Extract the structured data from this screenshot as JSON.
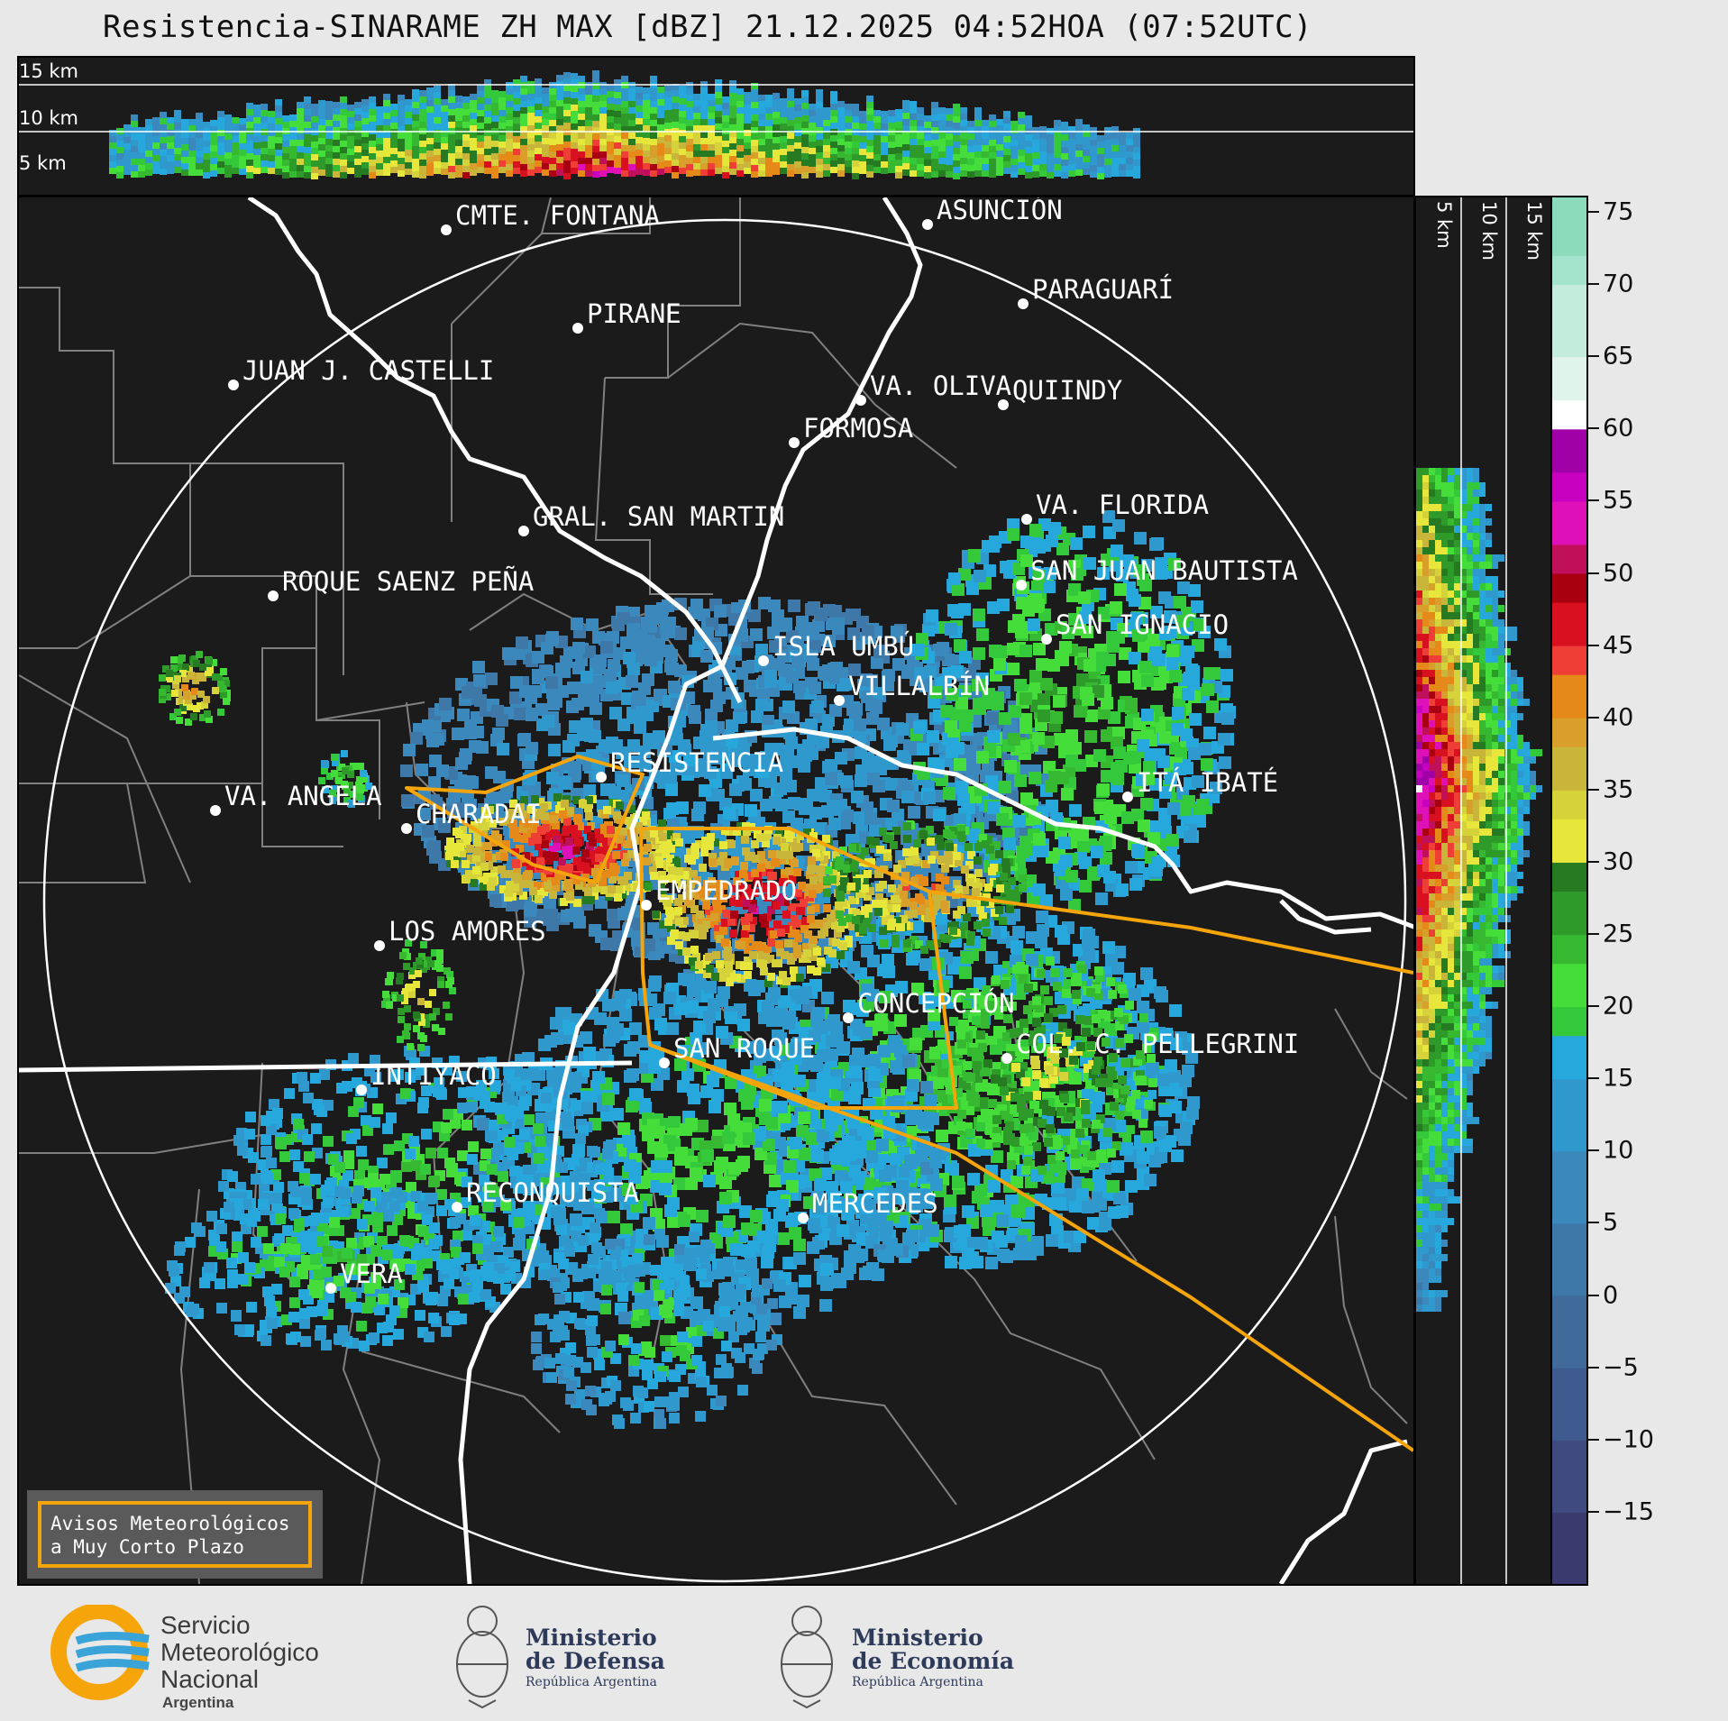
{
  "title": "Resistencia-SINARAME ZH MAX [dBZ] 21.12.2025 04:52HOA (07:52UTC)",
  "top_panel": {
    "height_labels": [
      "15 km",
      "10 km",
      "5 km"
    ]
  },
  "side_panel": {
    "height_labels": [
      "5 km",
      "10 km",
      "15 km"
    ]
  },
  "cities": [
    {
      "name": "CMTE. FONTANA"
    },
    {
      "name": "ASUNCIÓN"
    },
    {
      "name": "PIRANE"
    },
    {
      "name": "PARAGUARÍ"
    },
    {
      "name": "JUAN J. CASTELLI"
    },
    {
      "name": "VA. OLIVA"
    },
    {
      "name": "QUIINDY"
    },
    {
      "name": "FORMOSA"
    },
    {
      "name": "VA. FLORIDA"
    },
    {
      "name": "GRAL. SAN MARTIN"
    },
    {
      "name": "SAN JUAN BAUTISTA"
    },
    {
      "name": "ROQUE SAENZ PEÑA"
    },
    {
      "name": "SAN IGNACIO"
    },
    {
      "name": "ISLA UMBÚ"
    },
    {
      "name": "VILLALBÍN"
    },
    {
      "name": "RESISTENCIA"
    },
    {
      "name": "VA. ANGELA"
    },
    {
      "name": "ITÁ IBATÉ"
    },
    {
      "name": "CHARADAI"
    },
    {
      "name": "EMPEDRADO"
    },
    {
      "name": "LOS AMORES"
    },
    {
      "name": "CONCEPCIÓN"
    },
    {
      "name": "COL. C. PELLEGRINI"
    },
    {
      "name": "SAN ROQUE"
    },
    {
      "name": "INTIYACO"
    },
    {
      "name": "RECONQUISTA"
    },
    {
      "name": "MERCEDES"
    },
    {
      "name": "VERA"
    }
  ],
  "colorbar": {
    "unit": "dBZ",
    "ticks": [
      "75",
      "70",
      "65",
      "60",
      "55",
      "50",
      "45",
      "40",
      "35",
      "30",
      "25",
      "20",
      "15",
      "10",
      "5",
      "0",
      "−5",
      "−10",
      "−15"
    ],
    "range": [
      -20,
      76
    ]
  },
  "warning": {
    "line1": "Avisos Meteorológicos",
    "line2": "a Muy Corto Plazo"
  },
  "footer": {
    "smn": {
      "line1": "Servicio",
      "line2": "Meteorológico",
      "line3": "Nacional",
      "line4": "Argentina"
    },
    "defensa": {
      "line1": "Ministerio",
      "line2": "de Defensa",
      "line3": "República Argentina"
    },
    "economia": {
      "line1": "Ministerio",
      "line2": "de Economía",
      "line3": "República Argentina"
    }
  },
  "colors": {
    "background": "#1b1b1b",
    "warning_polygon": "#f5a50a",
    "borders_major": "#ffffff",
    "borders_minor": "#808080"
  }
}
